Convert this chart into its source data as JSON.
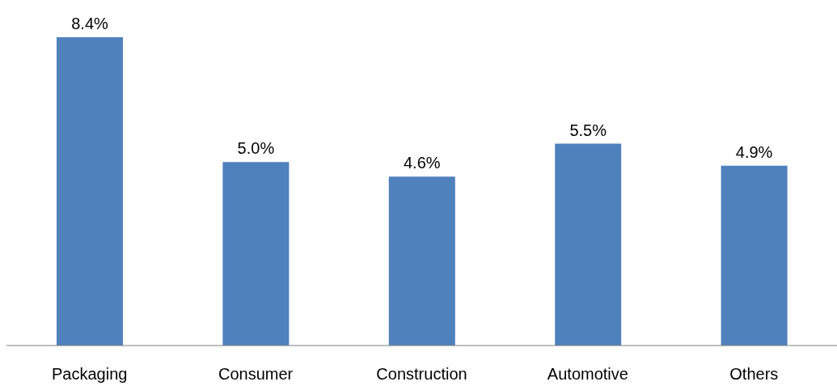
{
  "chart_data": {
    "type": "bar",
    "categories": [
      "Packaging",
      "Consumer",
      "Construction",
      "Automotive",
      "Others"
    ],
    "values": [
      8.4,
      5.0,
      4.6,
      5.5,
      4.9
    ],
    "value_labels": [
      "8.4%",
      "5.0%",
      "4.6%",
      "5.5%",
      "4.9%"
    ],
    "color": "#4f81bd"
  }
}
